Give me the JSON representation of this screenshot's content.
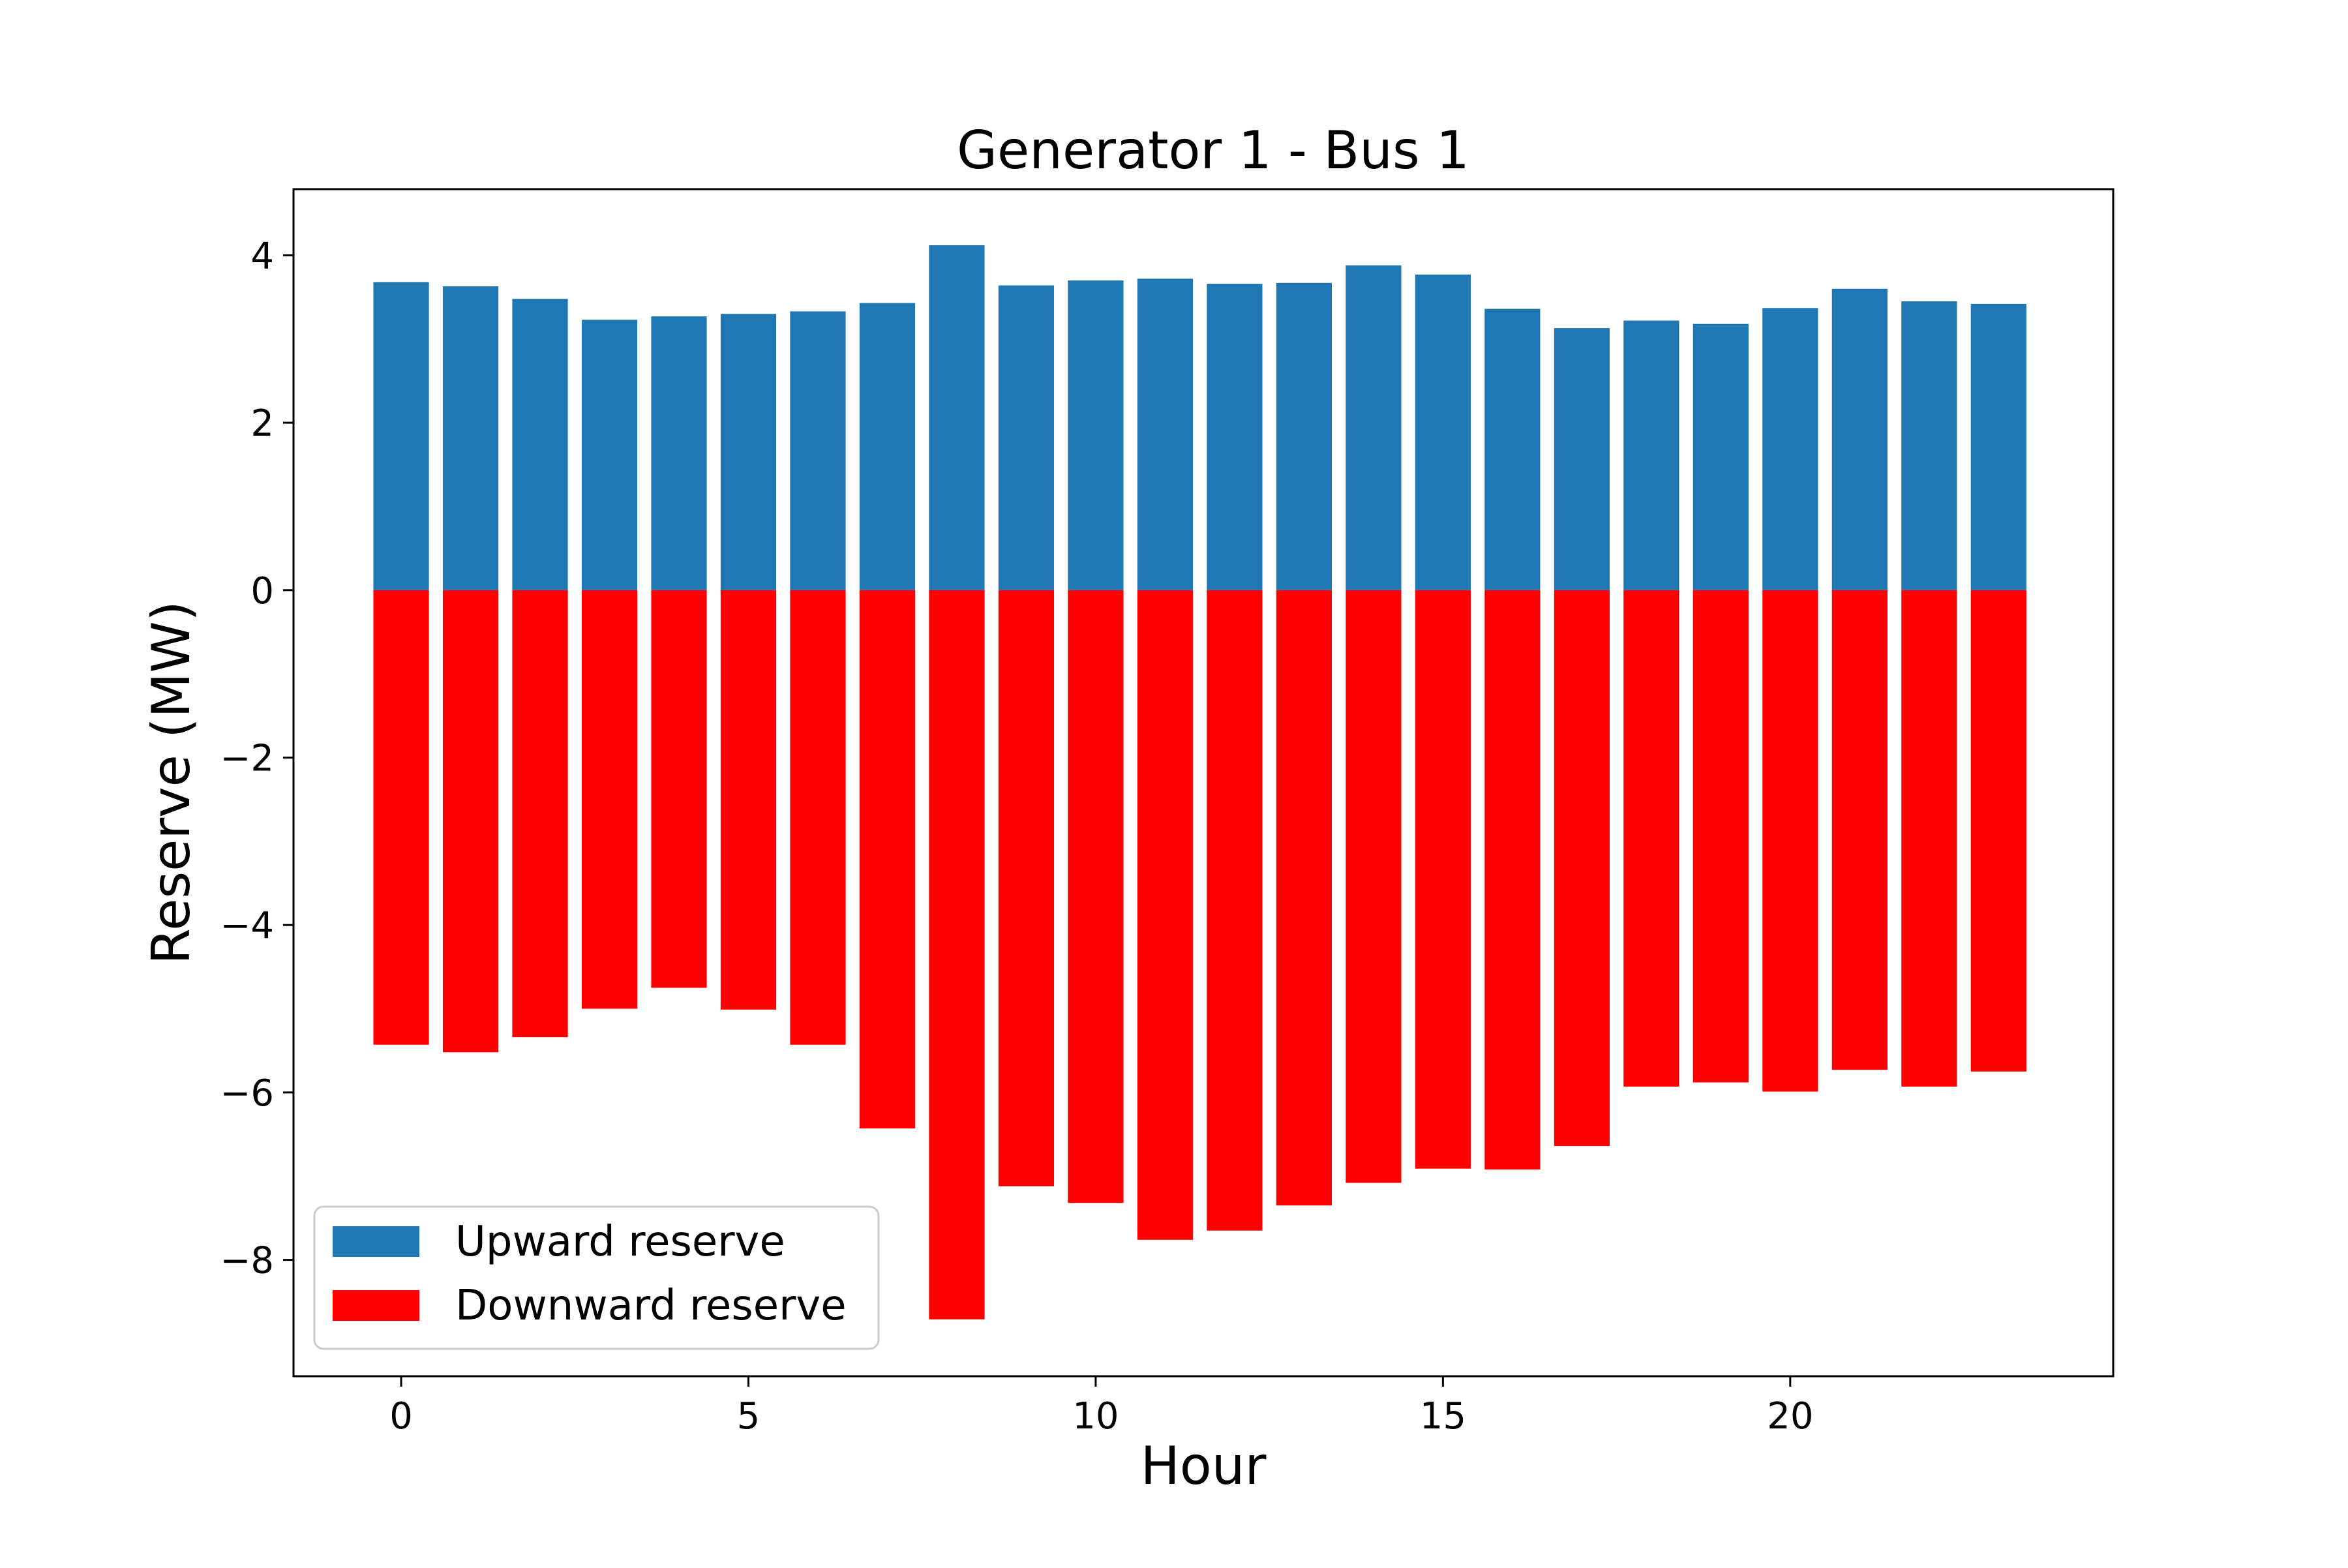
{
  "chart_data": {
    "type": "bar",
    "title": "Generator 1 - Bus 1",
    "xlabel": "Hour",
    "ylabel": "Reserve (MW)",
    "x": [
      0,
      1,
      2,
      3,
      4,
      5,
      6,
      7,
      8,
      9,
      10,
      11,
      12,
      13,
      14,
      15,
      16,
      17,
      18,
      19,
      20,
      21,
      22,
      23
    ],
    "series": [
      {
        "name": "Upward reserve",
        "color": "#1f77b4",
        "values": [
          3.68,
          3.63,
          3.48,
          3.23,
          3.27,
          3.3,
          3.33,
          3.43,
          4.12,
          3.64,
          3.7,
          3.72,
          3.66,
          3.67,
          3.88,
          3.77,
          3.36,
          3.13,
          3.22,
          3.18,
          3.37,
          3.6,
          3.45,
          3.42
        ]
      },
      {
        "name": "Downward reserve",
        "color": "#ff0000",
        "values": [
          -5.43,
          -5.52,
          -5.34,
          -5.0,
          -4.75,
          -5.01,
          -5.43,
          -6.43,
          -8.71,
          -7.12,
          -7.32,
          -7.76,
          -7.65,
          -7.35,
          -7.08,
          -6.91,
          -6.92,
          -6.64,
          -5.93,
          -5.88,
          -5.99,
          -5.73,
          -5.93,
          -5.75
        ]
      }
    ],
    "xlim": [
      -1.55,
      24.65
    ],
    "ylim": [
      -9.39,
      4.79
    ],
    "xticks": [
      {
        "value": 0,
        "label": "0"
      },
      {
        "value": 5,
        "label": "5"
      },
      {
        "value": 10,
        "label": "10"
      },
      {
        "value": 15,
        "label": "15"
      },
      {
        "value": 20,
        "label": "20"
      }
    ],
    "yticks": [
      {
        "value": 4,
        "label": "4"
      },
      {
        "value": 2,
        "label": "2"
      },
      {
        "value": 0,
        "label": "0"
      },
      {
        "value": -2,
        "label": "−2"
      },
      {
        "value": -4,
        "label": "−4"
      },
      {
        "value": -6,
        "label": "−6"
      },
      {
        "value": -8,
        "label": "−8"
      }
    ],
    "grid": false,
    "legend_position": "lower-left"
  }
}
